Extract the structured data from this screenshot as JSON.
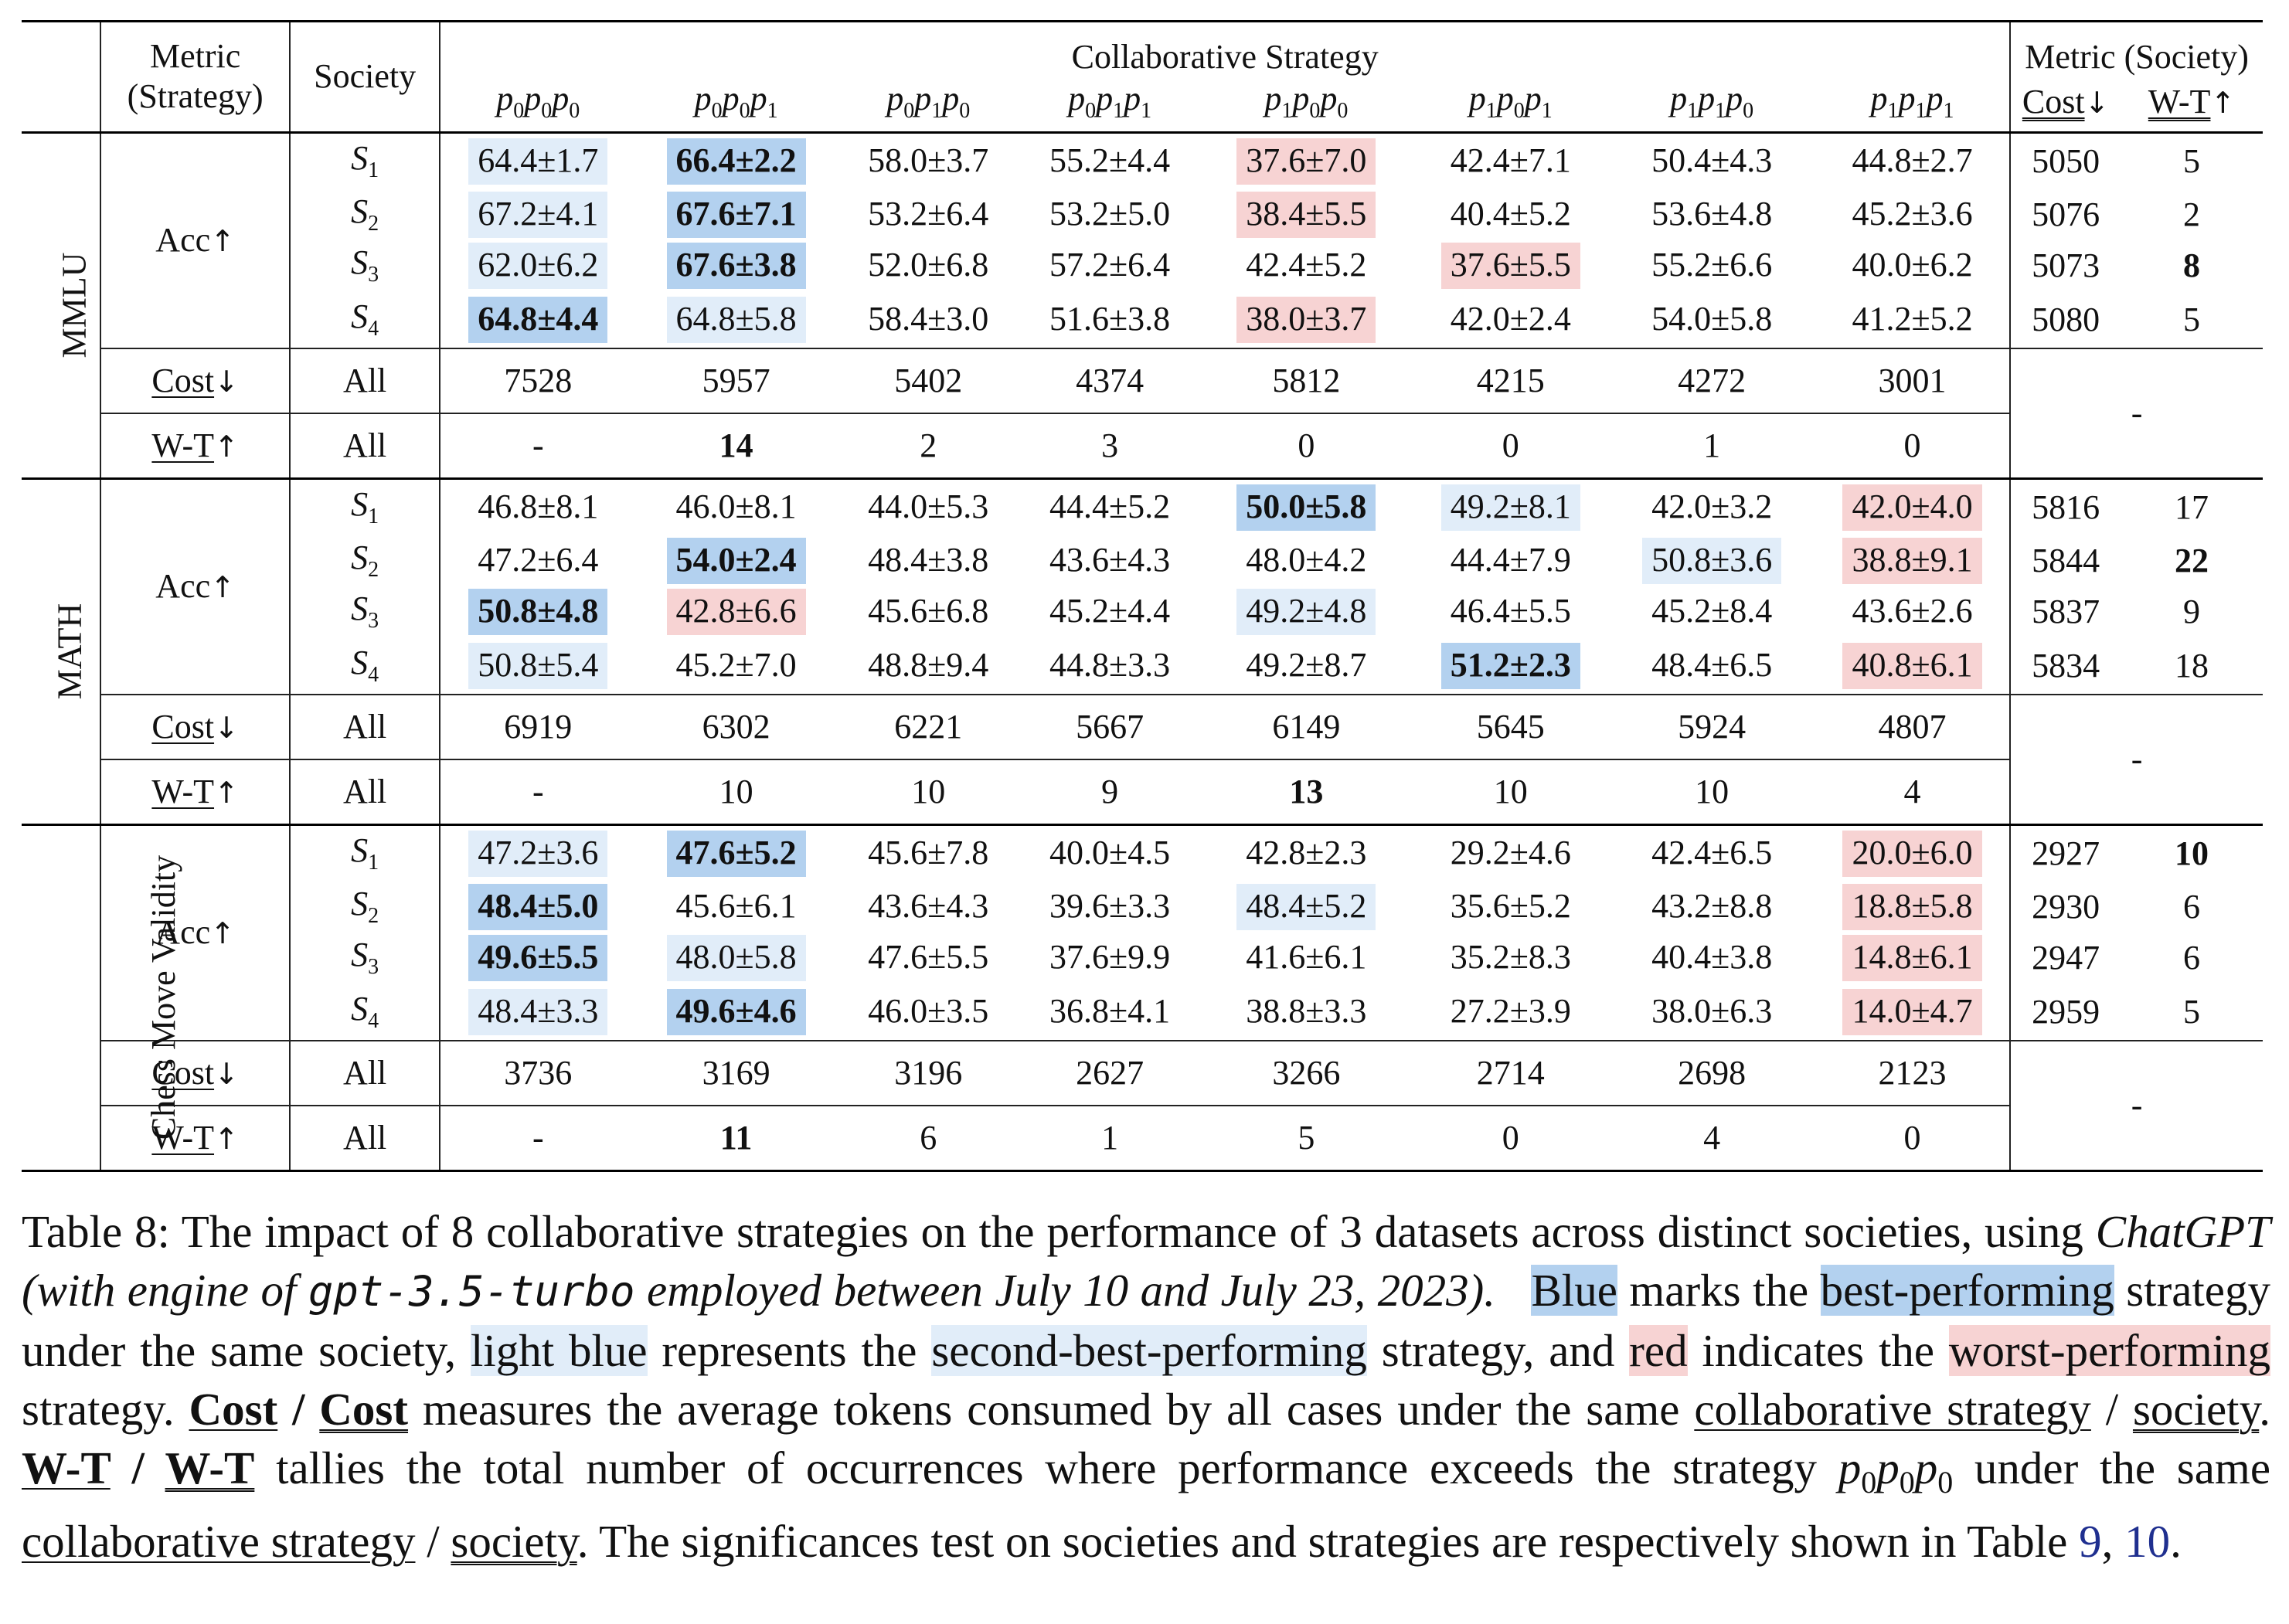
{
  "header": {
    "metric_strategy_l1": "Metric",
    "metric_strategy_l2": "(Strategy)",
    "society": "Society",
    "collab_strategy": "Collaborative Strategy",
    "metric_society": "Metric (Society)",
    "cost_label": "Cost",
    "wt_label": "W-T",
    "down_arrow": "↓",
    "up_arrow": "↑",
    "strategies": [
      [
        "p",
        "0",
        "p",
        "0",
        "p",
        "0"
      ],
      [
        "p",
        "0",
        "p",
        "0",
        "p",
        "1"
      ],
      [
        "p",
        "0",
        "p",
        "1",
        "p",
        "0"
      ],
      [
        "p",
        "0",
        "p",
        "1",
        "p",
        "1"
      ],
      [
        "p",
        "1",
        "p",
        "0",
        "p",
        "0"
      ],
      [
        "p",
        "1",
        "p",
        "0",
        "p",
        "1"
      ],
      [
        "p",
        "1",
        "p",
        "1",
        "p",
        "0"
      ],
      [
        "p",
        "1",
        "p",
        "1",
        "p",
        "1"
      ]
    ]
  },
  "row_labels": {
    "acc": "Acc",
    "cost": "Cost",
    "wt": "W-T",
    "all": "All",
    "dash": "-",
    "society_letter": "S"
  },
  "datasets": [
    {
      "name": "MMLU",
      "acc": [
        {
          "sub": "1",
          "cells": [
            "64.4±1.7",
            "66.4±2.2",
            "58.0±3.7",
            "55.2±4.4",
            "37.6±7.0",
            "42.4±7.1",
            "50.4±4.3",
            "44.8±2.7"
          ],
          "hl": [
            "second",
            "best",
            "",
            "",
            "worst",
            "",
            "",
            ""
          ],
          "soc_cost": "5050",
          "soc_wt": "5",
          "soc_wt_bold": false
        },
        {
          "sub": "2",
          "cells": [
            "67.2±4.1",
            "67.6±7.1",
            "53.2±6.4",
            "53.2±5.0",
            "38.4±5.5",
            "40.4±5.2",
            "53.6±4.8",
            "45.2±3.6"
          ],
          "hl": [
            "second",
            "best",
            "",
            "",
            "worst",
            "",
            "",
            ""
          ],
          "soc_cost": "5076",
          "soc_wt": "2",
          "soc_wt_bold": false
        },
        {
          "sub": "3",
          "cells": [
            "62.0±6.2",
            "67.6±3.8",
            "52.0±6.8",
            "57.2±6.4",
            "42.4±5.2",
            "37.6±5.5",
            "55.2±6.6",
            "40.0±6.2"
          ],
          "hl": [
            "second",
            "best",
            "",
            "",
            "",
            "worst",
            "",
            ""
          ],
          "soc_cost": "5073",
          "soc_wt": "8",
          "soc_wt_bold": true
        },
        {
          "sub": "4",
          "cells": [
            "64.8±4.4",
            "64.8±5.8",
            "58.4±3.0",
            "51.6±3.8",
            "38.0±3.7",
            "42.0±2.4",
            "54.0±5.8",
            "41.2±5.2"
          ],
          "hl": [
            "best",
            "second",
            "",
            "",
            "worst",
            "",
            "",
            ""
          ],
          "soc_cost": "5080",
          "soc_wt": "5",
          "soc_wt_bold": false
        }
      ],
      "cost": [
        "7528",
        "5957",
        "5402",
        "4374",
        "5812",
        "4215",
        "4272",
        "3001"
      ],
      "wt": [
        "-",
        "14",
        "2",
        "3",
        "0",
        "0",
        "1",
        "0"
      ],
      "wt_bold": [
        false,
        true,
        false,
        false,
        false,
        false,
        false,
        false
      ]
    },
    {
      "name": "MATH",
      "acc": [
        {
          "sub": "1",
          "cells": [
            "46.8±8.1",
            "46.0±8.1",
            "44.0±5.3",
            "44.4±5.2",
            "50.0±5.8",
            "49.2±8.1",
            "42.0±3.2",
            "42.0±4.0"
          ],
          "hl": [
            "",
            "",
            "",
            "",
            "best",
            "second",
            "",
            "worst"
          ],
          "soc_cost": "5816",
          "soc_wt": "17",
          "soc_wt_bold": false
        },
        {
          "sub": "2",
          "cells": [
            "47.2±6.4",
            "54.0±2.4",
            "48.4±3.8",
            "43.6±4.3",
            "48.0±4.2",
            "44.4±7.9",
            "50.8±3.6",
            "38.8±9.1"
          ],
          "hl": [
            "",
            "best",
            "",
            "",
            "",
            "",
            "second",
            "worst"
          ],
          "soc_cost": "5844",
          "soc_wt": "22",
          "soc_wt_bold": true
        },
        {
          "sub": "3",
          "cells": [
            "50.8±4.8",
            "42.8±6.6",
            "45.6±6.8",
            "45.2±4.4",
            "49.2±4.8",
            "46.4±5.5",
            "45.2±8.4",
            "43.6±2.6"
          ],
          "hl": [
            "best",
            "worst",
            "",
            "",
            "second",
            "",
            "",
            ""
          ],
          "soc_cost": "5837",
          "soc_wt": "9",
          "soc_wt_bold": false
        },
        {
          "sub": "4",
          "cells": [
            "50.8±5.4",
            "45.2±7.0",
            "48.8±9.4",
            "44.8±3.3",
            "49.2±8.7",
            "51.2±2.3",
            "48.4±6.5",
            "40.8±6.1"
          ],
          "hl": [
            "second",
            "",
            "",
            "",
            "",
            "best",
            "",
            "worst"
          ],
          "soc_cost": "5834",
          "soc_wt": "18",
          "soc_wt_bold": false
        }
      ],
      "cost": [
        "6919",
        "6302",
        "6221",
        "5667",
        "6149",
        "5645",
        "5924",
        "4807"
      ],
      "wt": [
        "-",
        "10",
        "10",
        "9",
        "13",
        "10",
        "10",
        "4"
      ],
      "wt_bold": [
        false,
        false,
        false,
        false,
        true,
        false,
        false,
        false
      ]
    },
    {
      "name": "Chess Move Validity",
      "acc": [
        {
          "sub": "1",
          "cells": [
            "47.2±3.6",
            "47.6±5.2",
            "45.6±7.8",
            "40.0±4.5",
            "42.8±2.3",
            "29.2±4.6",
            "42.4±6.5",
            "20.0±6.0"
          ],
          "hl": [
            "second",
            "best",
            "",
            "",
            "",
            "",
            "",
            "worst"
          ],
          "soc_cost": "2927",
          "soc_wt": "10",
          "soc_wt_bold": true
        },
        {
          "sub": "2",
          "cells": [
            "48.4±5.0",
            "45.6±6.1",
            "43.6±4.3",
            "39.6±3.3",
            "48.4±5.2",
            "35.6±5.2",
            "43.2±8.8",
            "18.8±5.8"
          ],
          "hl": [
            "best",
            "",
            "",
            "",
            "second",
            "",
            "",
            "worst"
          ],
          "soc_cost": "2930",
          "soc_wt": "6",
          "soc_wt_bold": false
        },
        {
          "sub": "3",
          "cells": [
            "49.6±5.5",
            "48.0±5.8",
            "47.6±5.5",
            "37.6±9.9",
            "41.6±6.1",
            "35.2±8.3",
            "40.4±3.8",
            "14.8±6.1"
          ],
          "hl": [
            "best",
            "second",
            "",
            "",
            "",
            "",
            "",
            "worst"
          ],
          "soc_cost": "2947",
          "soc_wt": "6",
          "soc_wt_bold": false
        },
        {
          "sub": "4",
          "cells": [
            "48.4±3.3",
            "49.6±4.6",
            "46.0±3.5",
            "36.8±4.1",
            "38.8±3.3",
            "27.2±3.9",
            "38.0±6.3",
            "14.0±4.7"
          ],
          "hl": [
            "second",
            "best",
            "",
            "",
            "",
            "",
            "",
            "worst"
          ],
          "soc_cost": "2959",
          "soc_wt": "5",
          "soc_wt_bold": false
        }
      ],
      "cost": [
        "3736",
        "3169",
        "3196",
        "2627",
        "3266",
        "2714",
        "2698",
        "2123"
      ],
      "wt": [
        "-",
        "11",
        "6",
        "1",
        "5",
        "0",
        "4",
        "0"
      ],
      "wt_bold": [
        false,
        true,
        false,
        false,
        false,
        false,
        false,
        false
      ]
    }
  ],
  "caption": {
    "t01": "Table 8: The impact of 8 collaborative strategies on the performance of 3 datasets across distinct societies, using ",
    "t02": "ChatGPT (with engine of ",
    "t03": "gpt-3.5-turbo",
    "t04": " employed between July 10 and July 23, 2023).",
    "t05": "Blue",
    "t06": " marks the ",
    "t07": "best-performing",
    "t08": " strategy under the same society, ",
    "t09": "light blue",
    "t10": " represents the ",
    "t11": "second-best-performing",
    "t12": " strategy, and ",
    "t13": "red",
    "t14": " indicates the ",
    "t15": "worst-performing",
    "t16": " strategy. ",
    "t17": "Cost",
    "t18": " / ",
    "t19": "Cost",
    "t20": " measures the average tokens consumed by all cases under the same ",
    "t21": "collaborative strategy",
    "t22": " / ",
    "t23": "society",
    "t24": ". ",
    "t25": "W-T",
    "t26": " / ",
    "t27": "W-T",
    "t28": " tallies the total number of occurrences where performance exceeds the strategy ",
    "t29": "p",
    "t30": "0",
    "t31": "p",
    "t32": "0",
    "t33": "p",
    "t34": "0",
    "t35": " under the same ",
    "t36": "collaborative strategy",
    "t37": " / ",
    "t38": "society",
    "t39": ". The significances test on societies and strategies are respectively shown in Table ",
    "t40": "9",
    "t41": ", ",
    "t42": "10",
    "t43": "."
  }
}
